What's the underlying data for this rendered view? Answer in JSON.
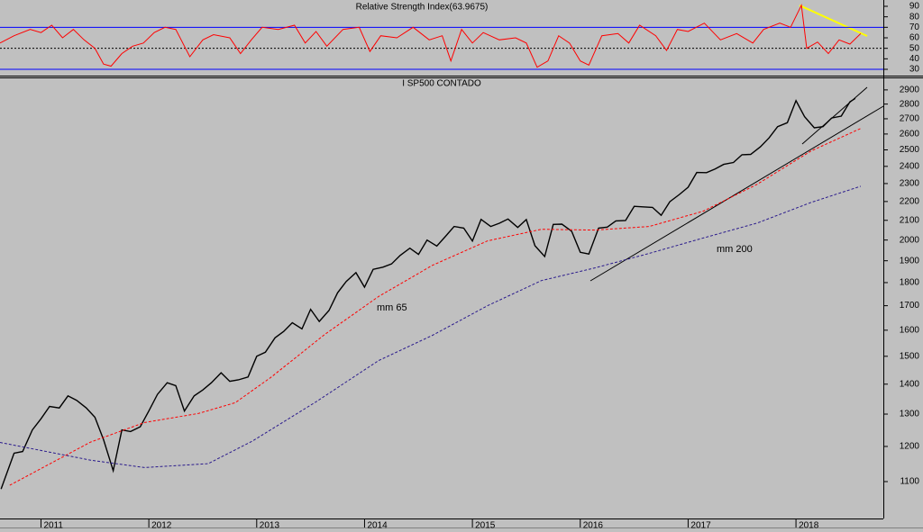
{
  "chart_data": [
    {
      "type": "line",
      "title": "Relative Strength Index(63.9675)",
      "xlim": [
        2010.62,
        2018.81
      ],
      "ylim": [
        24,
        96
      ],
      "yticks": [
        30,
        40,
        50,
        60,
        70,
        80,
        90
      ],
      "ref_lines": [
        {
          "value": 70,
          "color": "#0000ff"
        },
        {
          "value": 50,
          "color": "#000000",
          "dashed": true
        },
        {
          "value": 30,
          "color": "#0000ff"
        }
      ],
      "series": [
        {
          "color": "#ff0000",
          "x": [
            2010.62,
            2010.75,
            2010.9,
            2011.0,
            2011.1,
            2011.2,
            2011.3,
            2011.4,
            2011.5,
            2011.58,
            2011.65,
            2011.75,
            2011.85,
            2011.95,
            2012.05,
            2012.15,
            2012.25,
            2012.38,
            2012.5,
            2012.6,
            2012.75,
            2012.85,
            2012.95,
            2013.05,
            2013.2,
            2013.35,
            2013.45,
            2013.55,
            2013.65,
            2013.8,
            2013.95,
            2014.05,
            2014.15,
            2014.3,
            2014.45,
            2014.6,
            2014.72,
            2014.8,
            2014.9,
            2015.0,
            2015.1,
            2015.25,
            2015.4,
            2015.5,
            2015.6,
            2015.7,
            2015.8,
            2015.9,
            2016.0,
            2016.08,
            2016.2,
            2016.35,
            2016.45,
            2016.55,
            2016.7,
            2016.8,
            2016.9,
            2017.0,
            2017.15,
            2017.3,
            2017.45,
            2017.6,
            2017.7,
            2017.85,
            2017.95,
            2018.05,
            2018.1,
            2018.2,
            2018.3,
            2018.4,
            2018.5,
            2018.6
          ],
          "values": [
            55,
            62,
            68,
            65,
            72,
            60,
            68,
            58,
            50,
            35,
            33,
            45,
            52,
            55,
            65,
            70,
            68,
            42,
            58,
            63,
            60,
            45,
            58,
            70,
            68,
            72,
            55,
            66,
            52,
            68,
            70,
            47,
            62,
            60,
            70,
            58,
            62,
            38,
            68,
            55,
            65,
            58,
            60,
            55,
            32,
            38,
            62,
            55,
            38,
            34,
            62,
            64,
            55,
            72,
            62,
            48,
            68,
            66,
            74,
            58,
            64,
            55,
            68,
            74,
            70,
            91,
            50,
            56,
            45,
            58,
            54,
            64
          ]
        }
      ]
    },
    {
      "type": "line",
      "title": "I SP500 CONTADO",
      "log_scale": true,
      "xlim": [
        2010.62,
        2018.81
      ],
      "xticks": [
        2011,
        2012,
        2013,
        2014,
        2015,
        2016,
        2017,
        2018
      ],
      "ylim": [
        1004,
        2991
      ],
      "yticks": [
        1100,
        1200,
        1300,
        1400,
        1500,
        1600,
        1700,
        1800,
        1900,
        2000,
        2100,
        2200,
        2300,
        2400,
        2500,
        2600,
        2700,
        2800,
        2900
      ],
      "series": [
        {
          "color": "#000000",
          "x": [
            2010.63,
            2010.75,
            2010.83,
            2010.92,
            2011.0,
            2011.08,
            2011.17,
            2011.25,
            2011.33,
            2011.42,
            2011.5,
            2011.58,
            2011.67,
            2011.75,
            2011.83,
            2011.92,
            2012.0,
            2012.08,
            2012.17,
            2012.25,
            2012.33,
            2012.42,
            2012.5,
            2012.58,
            2012.67,
            2012.75,
            2012.83,
            2012.92,
            2013.0,
            2013.08,
            2013.17,
            2013.25,
            2013.33,
            2013.42,
            2013.5,
            2013.58,
            2013.67,
            2013.75,
            2013.83,
            2013.92,
            2014.0,
            2014.08,
            2014.17,
            2014.25,
            2014.33,
            2014.42,
            2014.5,
            2014.58,
            2014.67,
            2014.75,
            2014.83,
            2014.92,
            2015.0,
            2015.08,
            2015.17,
            2015.25,
            2015.33,
            2015.42,
            2015.5,
            2015.58,
            2015.67,
            2015.75,
            2015.83,
            2015.92,
            2016.0,
            2016.08,
            2016.17,
            2016.25,
            2016.33,
            2016.42,
            2016.5,
            2016.58,
            2016.67,
            2016.75,
            2016.83,
            2016.92,
            2017.0,
            2017.08,
            2017.17,
            2017.25,
            2017.33,
            2017.42,
            2017.5,
            2017.58,
            2017.67,
            2017.75,
            2017.83,
            2017.92,
            2018.0,
            2018.08,
            2018.17,
            2018.25,
            2018.33,
            2018.42,
            2018.5,
            2018.55
          ],
          "values": [
            1080,
            1180,
            1185,
            1250,
            1285,
            1325,
            1320,
            1360,
            1345,
            1320,
            1290,
            1220,
            1130,
            1250,
            1245,
            1260,
            1310,
            1365,
            1405,
            1395,
            1310,
            1360,
            1380,
            1405,
            1440,
            1410,
            1415,
            1425,
            1500,
            1515,
            1570,
            1595,
            1630,
            1605,
            1685,
            1635,
            1680,
            1755,
            1805,
            1845,
            1780,
            1860,
            1870,
            1885,
            1925,
            1960,
            1930,
            2000,
            1970,
            2018,
            2068,
            2060,
            1995,
            2105,
            2068,
            2085,
            2107,
            2063,
            2104,
            1972,
            1920,
            2079,
            2080,
            2044,
            1940,
            1932,
            2060,
            2065,
            2097,
            2099,
            2174,
            2171,
            2168,
            2126,
            2199,
            2239,
            2279,
            2364,
            2363,
            2384,
            2412,
            2423,
            2470,
            2472,
            2519,
            2575,
            2648,
            2674,
            2824,
            2714,
            2640,
            2648,
            2705,
            2718,
            2816,
            2840
          ]
        },
        {
          "name": "mm 65",
          "color": "#ff0000",
          "dashed": true,
          "x": [
            2010.71,
            2011.46,
            2011.96,
            2012.46,
            2012.8,
            2013.13,
            2013.63,
            2014.13,
            2014.63,
            2015.14,
            2015.64,
            2016.14,
            2016.64,
            2017.14,
            2017.64,
            2018.14,
            2018.6
          ],
          "values": [
            1090,
            1213,
            1273,
            1302,
            1337,
            1423,
            1583,
            1739,
            1879,
            1996,
            2054,
            2050,
            2068,
            2148,
            2296,
            2493,
            2636
          ]
        },
        {
          "name": "mm 200",
          "color": "#2a1a8c",
          "dashed": true,
          "x": [
            2010.62,
            2011.46,
            2011.96,
            2012.55,
            2012.96,
            2013.55,
            2014.13,
            2014.63,
            2015.14,
            2015.64,
            2016.14,
            2016.64,
            2017.14,
            2017.64,
            2018.14,
            2018.6
          ],
          "values": [
            1212,
            1160,
            1139,
            1150,
            1216,
            1340,
            1484,
            1580,
            1700,
            1809,
            1867,
            1935,
            2010,
            2086,
            2195,
            2285
          ]
        }
      ]
    }
  ]
}
